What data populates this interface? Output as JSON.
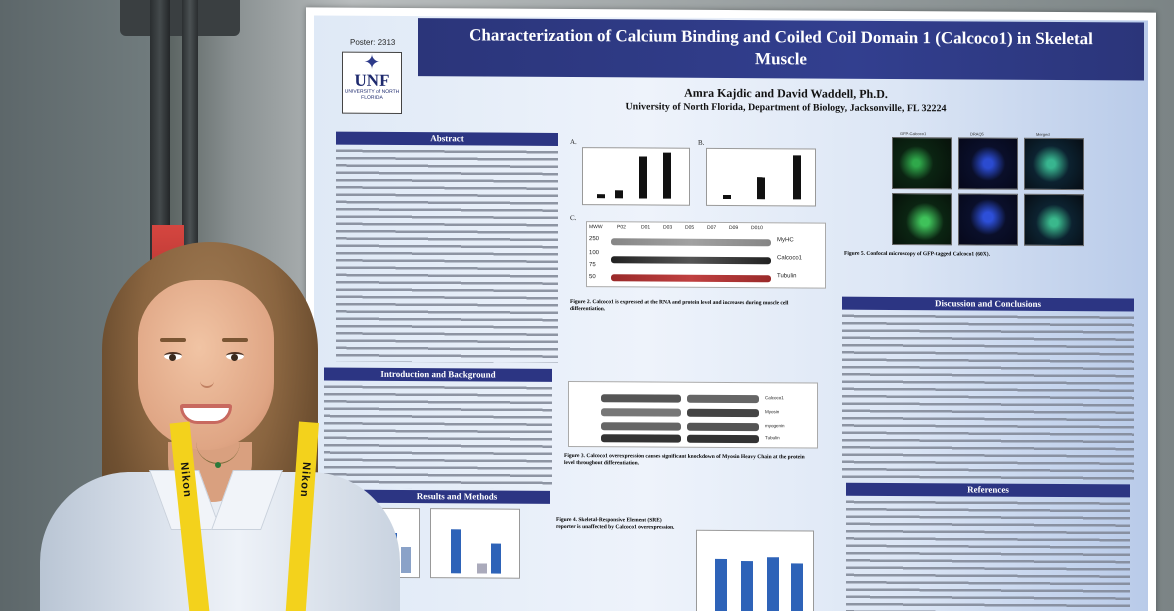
{
  "poster": {
    "number": "Poster: 2313",
    "logo_text": "UNF",
    "logo_subtitle": "UNIVERSITY of NORTH FLORIDA",
    "title": "Characterization of Calcium Binding and Coiled Coil Domain 1 (Calcoco1) in Skeletal Muscle",
    "authors": "Amra Kajdic and David Waddell, Ph.D.",
    "affiliation": "University of North Florida, Department of Biology, Jacksonville, FL 32224",
    "sections": {
      "abstract": "Abstract",
      "introduction": "Introduction and Background",
      "results": "Results and Methods",
      "discussion": "Discussion and Conclusions",
      "references": "References"
    },
    "blot": {
      "ladder": [
        "250",
        "100",
        "75",
        "50"
      ],
      "lanes": [
        "MWW",
        "P02",
        "D01",
        "D03",
        "D05",
        "D07",
        "D09",
        "D010"
      ],
      "labels": [
        "MyHC",
        "Calcoco1",
        "Tubulin"
      ]
    },
    "blot2": {
      "labels": [
        "Calcoco1",
        "Myosin",
        "myogenin",
        "Tubulin"
      ]
    },
    "micro_labels": [
      "GFP-Calcoco1",
      "DRAQ5",
      "Merged"
    ],
    "fig_letters": [
      "A.",
      "B.",
      "C."
    ],
    "captions": {
      "fig2": "Figure 2. Calcoco1 is expressed at the RNA and protein level and increases during muscle cell differentiation.",
      "fig3": "Figure 3. Calcoco1 overexpression causes significant knockdown of Myosin Heavy Chain at the protein level throughout differentiation.",
      "fig4": "Figure 4. Skeletal-Responsive Element (SRE) reporter is unaffected by Calcoco1 overexpression.",
      "fig5": "Figure 5. Confocal microscopy of GFP-tagged Calcoco1 (60X)."
    }
  },
  "lanyard_text": "Nikon"
}
